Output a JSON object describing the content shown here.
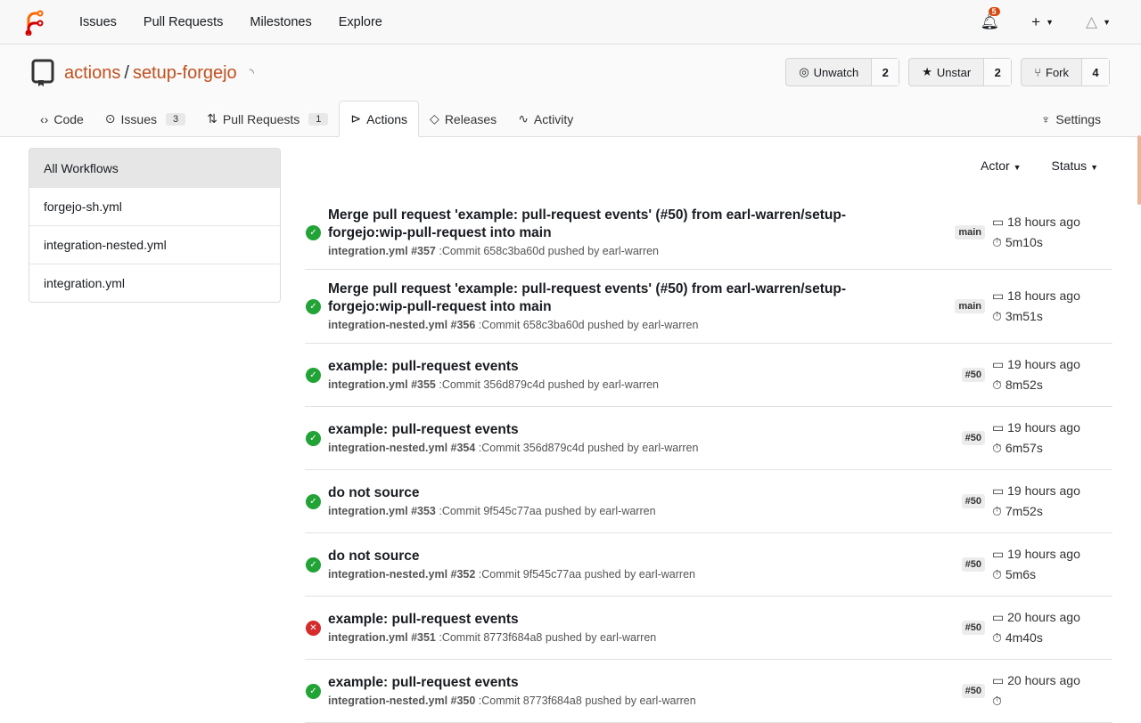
{
  "nav": {
    "items": [
      "Issues",
      "Pull Requests",
      "Milestones",
      "Explore"
    ],
    "notifications": "5"
  },
  "repo": {
    "owner": "actions",
    "name": "setup-forgejo",
    "buttons": [
      {
        "label": "Unwatch",
        "count": "2",
        "icon": "eye-slash-icon"
      },
      {
        "label": "Unstar",
        "count": "2",
        "icon": "star-icon"
      },
      {
        "label": "Fork",
        "count": "4",
        "icon": "fork-icon"
      }
    ],
    "tabs": [
      {
        "label": "Code",
        "icon": "<>"
      },
      {
        "label": "Issues",
        "count": "3"
      },
      {
        "label": "Pull Requests",
        "count": "1"
      },
      {
        "label": "Actions"
      },
      {
        "label": "Releases"
      },
      {
        "label": "Activity"
      }
    ],
    "settings": "Settings"
  },
  "sidebar": {
    "items": [
      "All Workflows",
      "forgejo-sh.yml",
      "integration-nested.yml",
      "integration.yml"
    ]
  },
  "filters": {
    "actor": "Actor",
    "status": "Status"
  },
  "runs": [
    {
      "status": "success",
      "title": "Merge pull request 'example: pull-request events' (#50) from earl-warren/setup-forgejo:wip-pull-request into main",
      "workflow": "integration.yml #357",
      "detail": " :Commit 658c3ba60d pushed by earl-warren",
      "ref": "main",
      "time": "18 hours ago",
      "duration": "5m10s"
    },
    {
      "status": "success",
      "title": "Merge pull request 'example: pull-request events' (#50) from earl-warren/setup-forgejo:wip-pull-request into main",
      "workflow": "integration-nested.yml #356",
      "detail": " :Commit 658c3ba60d pushed by earl-warren",
      "ref": "main",
      "time": "18 hours ago",
      "duration": "3m51s"
    },
    {
      "status": "success",
      "title": "example: pull-request events",
      "workflow": "integration.yml #355",
      "detail": " :Commit 356d879c4d pushed by earl-warren",
      "ref": "#50",
      "time": "19 hours ago",
      "duration": "8m52s"
    },
    {
      "status": "success",
      "title": "example: pull-request events",
      "workflow": "integration-nested.yml #354",
      "detail": " :Commit 356d879c4d pushed by earl-warren",
      "ref": "#50",
      "time": "19 hours ago",
      "duration": "6m57s"
    },
    {
      "status": "success",
      "title": "do not source",
      "workflow": "integration.yml #353",
      "detail": " :Commit 9f545c77aa pushed by earl-warren",
      "ref": "#50",
      "time": "19 hours ago",
      "duration": "7m52s"
    },
    {
      "status": "success",
      "title": "do not source",
      "workflow": "integration-nested.yml #352",
      "detail": " :Commit 9f545c77aa pushed by earl-warren",
      "ref": "#50",
      "time": "19 hours ago",
      "duration": "5m6s"
    },
    {
      "status": "failure",
      "title": "example: pull-request events",
      "workflow": "integration.yml #351",
      "detail": " :Commit 8773f684a8 pushed by earl-warren",
      "ref": "#50",
      "time": "20 hours ago",
      "duration": "4m40s"
    },
    {
      "status": "success",
      "title": "example: pull-request events",
      "workflow": "integration-nested.yml #350",
      "detail": " :Commit 8773f684a8 pushed by earl-warren",
      "ref": "#50",
      "time": "20 hours ago",
      "duration": ""
    }
  ]
}
